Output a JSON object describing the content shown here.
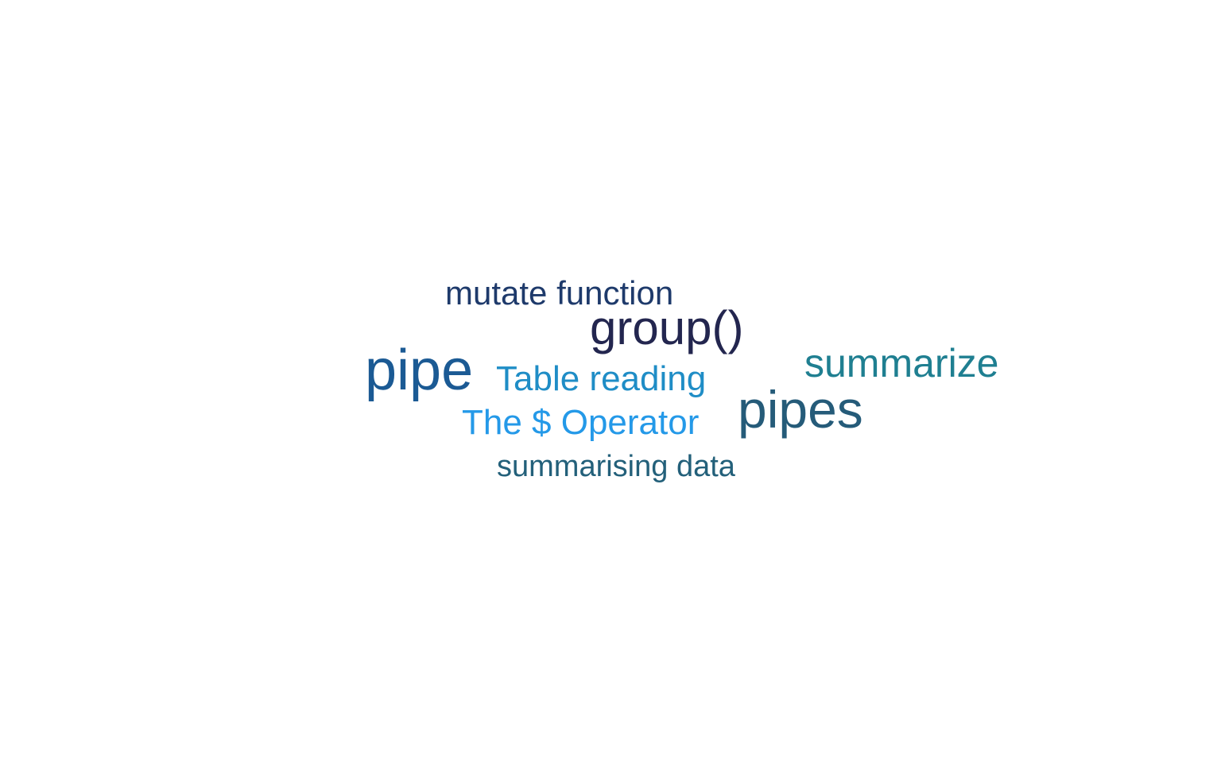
{
  "words": [
    {
      "text": "mutate function",
      "color": "#1e3a6b"
    },
    {
      "text": "group()",
      "color": "#23264f"
    },
    {
      "text": "pipe",
      "color": "#1b5a94"
    },
    {
      "text": "Table reading",
      "color": "#1f8dc6"
    },
    {
      "text": "summarize",
      "color": "#1f7f91"
    },
    {
      "text": "pipes",
      "color": "#255b79"
    },
    {
      "text": "The $ Operator",
      "color": "#2499e8"
    },
    {
      "text": "summarising data",
      "color": "#23607a"
    }
  ]
}
